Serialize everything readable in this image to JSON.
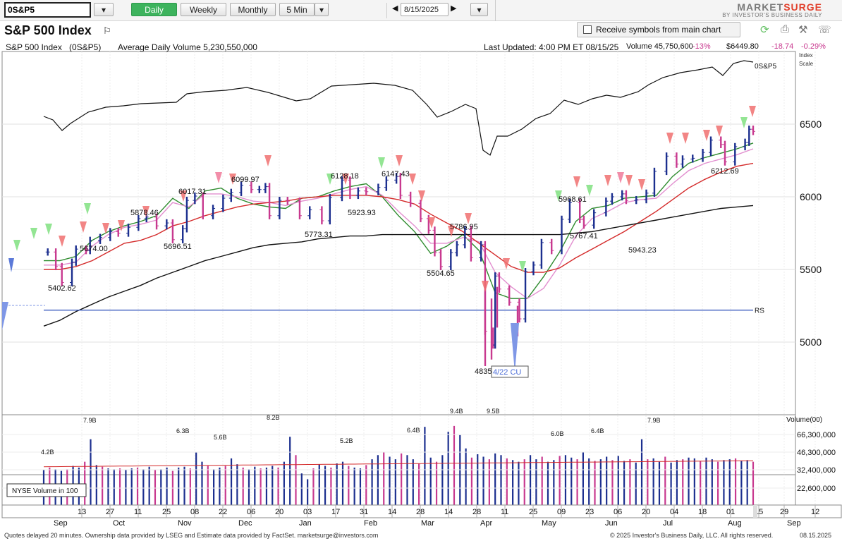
{
  "toolbar": {
    "symbol": "0S&P5",
    "daily": "Daily",
    "weekly": "Weekly",
    "monthly": "Monthly",
    "five_min": "5 Min",
    "date": "8/15/2025",
    "logo_main_a": "MARKET",
    "logo_main_b": "SURGE",
    "logo_sub": "BY INVESTOR'S BUSINESS DAILY"
  },
  "header": {
    "title": "S&P 500 Index",
    "receive_label": "Receive symbols from main chart"
  },
  "info": {
    "name": "S&P 500 Index",
    "symbol": "(0S&P5)",
    "avg_volume": "Average Daily Volume 5,230,550,000",
    "last_updated": "Last Updated: 4:00 PM ET 08/15/25",
    "volume": "Volume 45,750,600",
    "volume_change": "-13%",
    "price": "$6449.80",
    "change": "-18.74",
    "change_pct": "-0.29%"
  },
  "footer": {
    "left": "Quotes delayed 20 minutes. Ownership data provided by LSEG and Estimate data provided by FactSet. marketsurge@investors.com",
    "right": "© 2025 Investor's Business Daily, LLC. All rights reserved.",
    "date": "08.15.2025"
  },
  "colors": {
    "up_bar": "#1c2f8f",
    "down_bar": "#c8398f",
    "ma_green": "#2e8b2e",
    "ma_pink": "#e28fcf",
    "ma_red": "#d42a2a",
    "ma_black": "#111111",
    "rs_line": "#111111",
    "rs_level": "#3b5bbf",
    "accent_green": "#3db35d"
  },
  "chart_data": {
    "type": "candlestick",
    "title": "S&P 500 Index",
    "ylim": [
      4750,
      6800
    ],
    "price_ticks": [
      5000,
      5500,
      6000,
      6500
    ],
    "price_axis_labels": {
      "index": "Index",
      "scale": "Scale"
    },
    "rs_line_label": "0S&P5",
    "rs_level_label": "RS",
    "rs_level_price": 5220,
    "x_ticks": [
      "13",
      "27",
      "11",
      "25",
      "08",
      "22",
      "06",
      "20",
      "03",
      "17",
      "31",
      "14",
      "28",
      "14",
      "28",
      "11",
      "25",
      "09",
      "23",
      "06",
      "20",
      "04",
      "18",
      "01",
      "15",
      "29",
      "12"
    ],
    "month_labels": [
      "Sep",
      "Oct",
      "Nov",
      "Dec",
      "Jan",
      "Feb",
      "Mar",
      "Apr",
      "May",
      "Jun",
      "Jul",
      "Aug",
      "Sep"
    ],
    "price_annotations": [
      "5402.62",
      "5674.00",
      "5878.46",
      "5696.51",
      "6017.31",
      "6099.97",
      "5773.31",
      "6128.18",
      "5923.93",
      "6147.43",
      "5504.65",
      "5786.95",
      "4835",
      "5968.61",
      "5767.41",
      "5943.23",
      "6212.69"
    ],
    "event_label": "4/22 CU",
    "volume_axis_title": "Volume(00)",
    "volume_ticks": [
      "66,300,000",
      "46,300,000",
      "32,400,000",
      "22,600,000"
    ],
    "volume_labels": [
      "4.2B",
      "7.9B",
      "6.3B",
      "5.6B",
      "8.2B",
      "5.2B",
      "6.4B",
      "9.4B",
      "9.5B",
      "6.0B",
      "6.4B",
      "7.9B"
    ],
    "volume_legend": "NYSE Volume in 100",
    "close_series": [
      {
        "date": "2024-08-30",
        "close": 5620
      },
      {
        "date": "2024-09-03",
        "close": 5520
      },
      {
        "date": "2024-09-06",
        "close": 5410
      },
      {
        "date": "2024-09-11",
        "close": 5550
      },
      {
        "date": "2024-09-13",
        "close": 5640
      },
      {
        "date": "2024-09-18",
        "close": 5630
      },
      {
        "date": "2024-09-20",
        "close": 5700
      },
      {
        "date": "2024-09-25",
        "close": 5720
      },
      {
        "date": "2024-09-30",
        "close": 5760
      },
      {
        "date": "2024-10-04",
        "close": 5750
      },
      {
        "date": "2024-10-09",
        "close": 5790
      },
      {
        "date": "2024-10-14",
        "close": 5850
      },
      {
        "date": "2024-10-18",
        "close": 5860
      },
      {
        "date": "2024-10-23",
        "close": 5800
      },
      {
        "date": "2024-10-28",
        "close": 5820
      },
      {
        "date": "2024-10-31",
        "close": 5705
      },
      {
        "date": "2024-11-05",
        "close": 5780
      },
      {
        "date": "2024-11-07",
        "close": 5975
      },
      {
        "date": "2024-11-11",
        "close": 6005
      },
      {
        "date": "2024-11-15",
        "close": 5870
      },
      {
        "date": "2024-11-20",
        "close": 5920
      },
      {
        "date": "2024-11-25",
        "close": 5990
      },
      {
        "date": "2024-11-29",
        "close": 6030
      },
      {
        "date": "2024-12-04",
        "close": 6080
      },
      {
        "date": "2024-12-09",
        "close": 6050
      },
      {
        "date": "2024-12-13",
        "close": 6050
      },
      {
        "date": "2024-12-16",
        "close": 6070
      },
      {
        "date": "2024-12-18",
        "close": 5870
      },
      {
        "date": "2024-12-23",
        "close": 5975
      },
      {
        "date": "2024-12-27",
        "close": 5970
      },
      {
        "date": "2025-01-02",
        "close": 5870
      },
      {
        "date": "2025-01-07",
        "close": 5910
      },
      {
        "date": "2025-01-13",
        "close": 5835
      },
      {
        "date": "2025-01-17",
        "close": 5995
      },
      {
        "date": "2025-01-23",
        "close": 6115
      },
      {
        "date": "2025-01-27",
        "close": 6010
      },
      {
        "date": "2025-01-31",
        "close": 6040
      },
      {
        "date": "2025-02-04",
        "close": 6035
      },
      {
        "date": "2025-02-10",
        "close": 6065
      },
      {
        "date": "2025-02-14",
        "close": 6115
      },
      {
        "date": "2025-02-19",
        "close": 6140
      },
      {
        "date": "2025-02-21",
        "close": 6010
      },
      {
        "date": "2025-02-26",
        "close": 5955
      },
      {
        "date": "2025-03-03",
        "close": 5850
      },
      {
        "date": "2025-03-07",
        "close": 5770
      },
      {
        "date": "2025-03-10",
        "close": 5615
      },
      {
        "date": "2025-03-13",
        "close": 5520
      },
      {
        "date": "2025-03-18",
        "close": 5615
      },
      {
        "date": "2025-03-21",
        "close": 5670
      },
      {
        "date": "2025-03-25",
        "close": 5775
      },
      {
        "date": "2025-03-28",
        "close": 5580
      },
      {
        "date": "2025-04-02",
        "close": 5670
      },
      {
        "date": "2025-04-04",
        "close": 5075
      },
      {
        "date": "2025-04-08",
        "close": 4980
      },
      {
        "date": "2025-04-09",
        "close": 5455
      },
      {
        "date": "2025-04-11",
        "close": 5365
      },
      {
        "date": "2025-04-16",
        "close": 5275
      },
      {
        "date": "2025-04-21",
        "close": 5160
      },
      {
        "date": "2025-04-24",
        "close": 5485
      },
      {
        "date": "2025-04-28",
        "close": 5530
      },
      {
        "date": "2025-05-02",
        "close": 5685
      },
      {
        "date": "2025-05-07",
        "close": 5630
      },
      {
        "date": "2025-05-12",
        "close": 5845
      },
      {
        "date": "2025-05-16",
        "close": 5960
      },
      {
        "date": "2025-05-21",
        "close": 5845
      },
      {
        "date": "2025-05-23",
        "close": 5805
      },
      {
        "date": "2025-05-28",
        "close": 5890
      },
      {
        "date": "2025-06-03",
        "close": 5970
      },
      {
        "date": "2025-06-06",
        "close": 6000
      },
      {
        "date": "2025-06-11",
        "close": 6020
      },
      {
        "date": "2025-06-13",
        "close": 5975
      },
      {
        "date": "2025-06-18",
        "close": 5980
      },
      {
        "date": "2025-06-23",
        "close": 6025
      },
      {
        "date": "2025-06-27",
        "close": 6175
      },
      {
        "date": "2025-07-03",
        "close": 6280
      },
      {
        "date": "2025-07-08",
        "close": 6225
      },
      {
        "date": "2025-07-11",
        "close": 6260
      },
      {
        "date": "2025-07-16",
        "close": 6265
      },
      {
        "date": "2025-07-21",
        "close": 6305
      },
      {
        "date": "2025-07-25",
        "close": 6390
      },
      {
        "date": "2025-07-30",
        "close": 6360
      },
      {
        "date": "2025-08-01",
        "close": 6240
      },
      {
        "date": "2025-08-06",
        "close": 6345
      },
      {
        "date": "2025-08-11",
        "close": 6375
      },
      {
        "date": "2025-08-13",
        "close": 6465
      },
      {
        "date": "2025-08-15",
        "close": 6449.8
      }
    ],
    "moving_averages": [
      {
        "kind": "green",
        "series": [
          5560,
          5560,
          5590,
          5700,
          5760,
          5800,
          5830,
          5870,
          5990,
          5920,
          6040,
          6060,
          5990,
          5950,
          5930,
          5920,
          5990,
          6000,
          6040,
          6070,
          6090,
          6000,
          5870,
          5760,
          5610,
          5660,
          5740,
          5630,
          5340,
          5300,
          5300,
          5450,
          5620,
          5830,
          5920,
          5940,
          5990,
          6000,
          6010,
          6140,
          6230,
          6270,
          6300,
          6330,
          6370
        ]
      },
      {
        "kind": "pink",
        "series": [
          5530,
          5530,
          5550,
          5660,
          5740,
          5790,
          5810,
          5840,
          5960,
          5930,
          6020,
          6020,
          6000,
          5970,
          5960,
          5940,
          5970,
          5990,
          6020,
          6050,
          6070,
          6010,
          5900,
          5800,
          5680,
          5680,
          5720,
          5690,
          5480,
          5380,
          5300,
          5370,
          5530,
          5730,
          5850,
          5900,
          5960,
          5980,
          5990,
          6090,
          6180,
          6230,
          6260,
          6290,
          6330
        ]
      },
      {
        "kind": "red",
        "series": [
          5500,
          5500,
          5520,
          5560,
          5620,
          5680,
          5700,
          5740,
          5800,
          5830,
          5870,
          5900,
          5930,
          5950,
          5960,
          5970,
          5990,
          6000,
          6010,
          6010,
          6010,
          6000,
          5980,
          5950,
          5880,
          5820,
          5760,
          5680,
          5600,
          5520,
          5480,
          5480,
          5510,
          5580,
          5640,
          5700,
          5760,
          5830,
          5900,
          5980,
          6060,
          6120,
          6170,
          6210,
          6230
        ]
      },
      {
        "kind": "black",
        "series": [
          5110,
          5150,
          5210,
          5260,
          5310,
          5350,
          5390,
          5440,
          5480,
          5520,
          5560,
          5590,
          5620,
          5650,
          5670,
          5680,
          5690,
          5710,
          5720,
          5730,
          5730,
          5740,
          5740,
          5740,
          5740,
          5740,
          5740,
          5740,
          5740,
          5740,
          5740,
          5740,
          5740,
          5750,
          5760,
          5780,
          5800,
          5820,
          5840,
          5860,
          5880,
          5900,
          5920,
          5930,
          5940
        ]
      }
    ],
    "volume_series": [
      42,
      45,
      43,
      41,
      43,
      47,
      45,
      52,
      79,
      48,
      46,
      44,
      43,
      44,
      42,
      44,
      45,
      43,
      46,
      42,
      43,
      45,
      41,
      45,
      46,
      44,
      63,
      52,
      47,
      43,
      45,
      47,
      56,
      49,
      45,
      43,
      46,
      44,
      45,
      47,
      45,
      52,
      82,
      60,
      38,
      31,
      44,
      49,
      47,
      45,
      50,
      52,
      47,
      45,
      44,
      48,
      55,
      60,
      64,
      58,
      55,
      62,
      60,
      55,
      50,
      94,
      57,
      52,
      60,
      88,
      95,
      84,
      68,
      57,
      61,
      58,
      55,
      62,
      60,
      56,
      54,
      52,
      55,
      60,
      55,
      58,
      52,
      54,
      59,
      60,
      57,
      55,
      64,
      56,
      53,
      55,
      58,
      54,
      59,
      53,
      55,
      51,
      79,
      55,
      56,
      52,
      58,
      51,
      54,
      55,
      57,
      56,
      53,
      57,
      55,
      52,
      54,
      55,
      56,
      53,
      54,
      52
    ]
  }
}
